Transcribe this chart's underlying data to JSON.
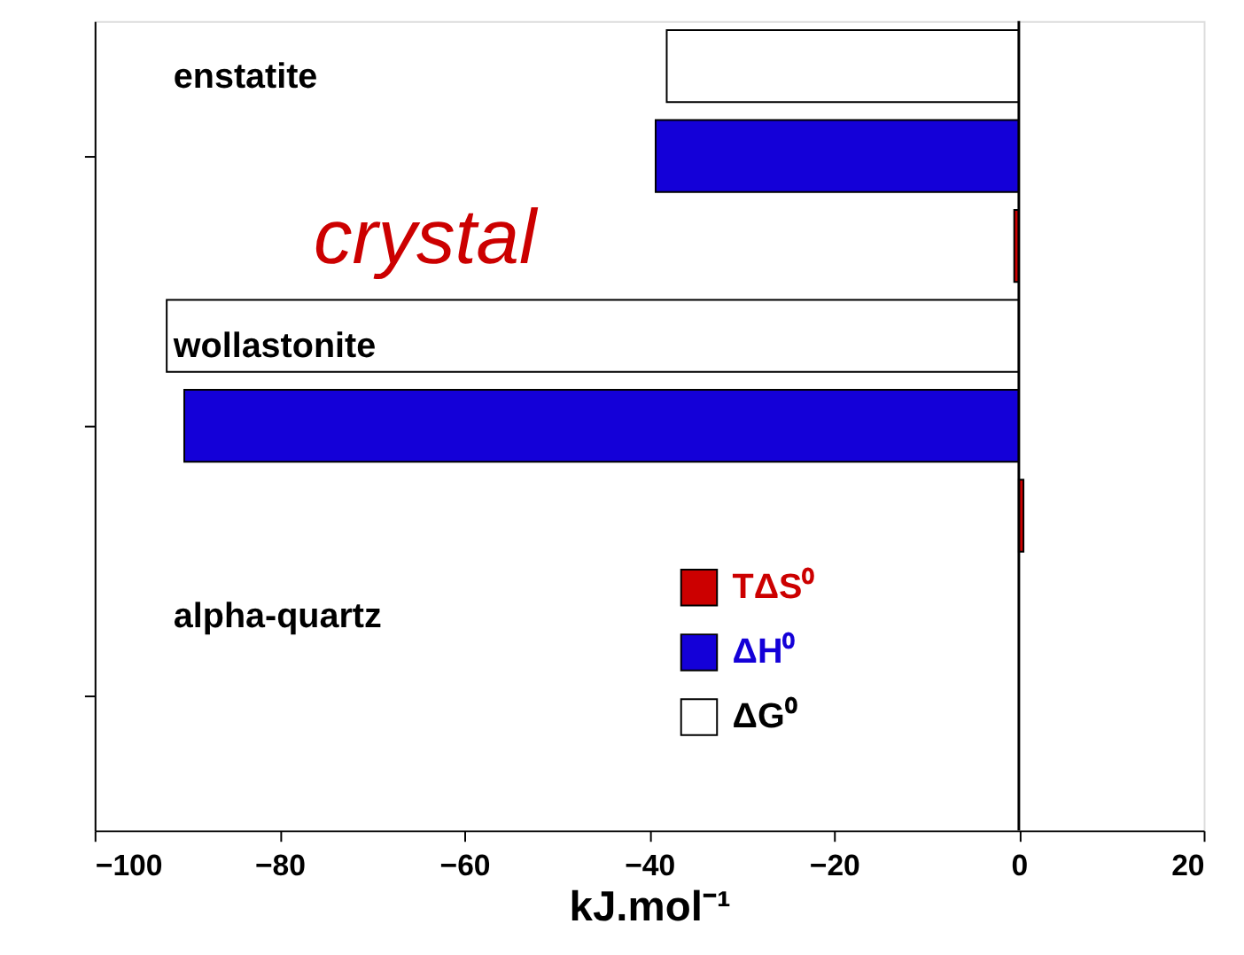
{
  "chart_data": {
    "type": "bar",
    "orientation": "horizontal",
    "xlabel": "kJ.mol⁻¹",
    "categories": [
      "enstatite",
      "wollastonite",
      "alpha-quartz"
    ],
    "series": [
      {
        "name": "ΔG⁰",
        "color": "#ffffff",
        "values": [
          -38.1,
          -92.2,
          0
        ]
      },
      {
        "name": "ΔH⁰",
        "color": "#1400d8",
        "values": [
          -39.3,
          -90.3,
          0
        ]
      },
      {
        "name": "TΔS⁰",
        "color": "#cc0000",
        "values": [
          -0.5,
          0.5,
          0
        ]
      }
    ],
    "xlim": [
      -100,
      20
    ],
    "xticks": [
      -100,
      -80,
      -60,
      -40,
      -20,
      0,
      20
    ],
    "ref_lines": [
      {
        "axis": "x",
        "value": 0
      }
    ],
    "annotations": [
      "crystal"
    ],
    "legend": "bottom",
    "tick_labels": "x",
    "grid": false
  }
}
